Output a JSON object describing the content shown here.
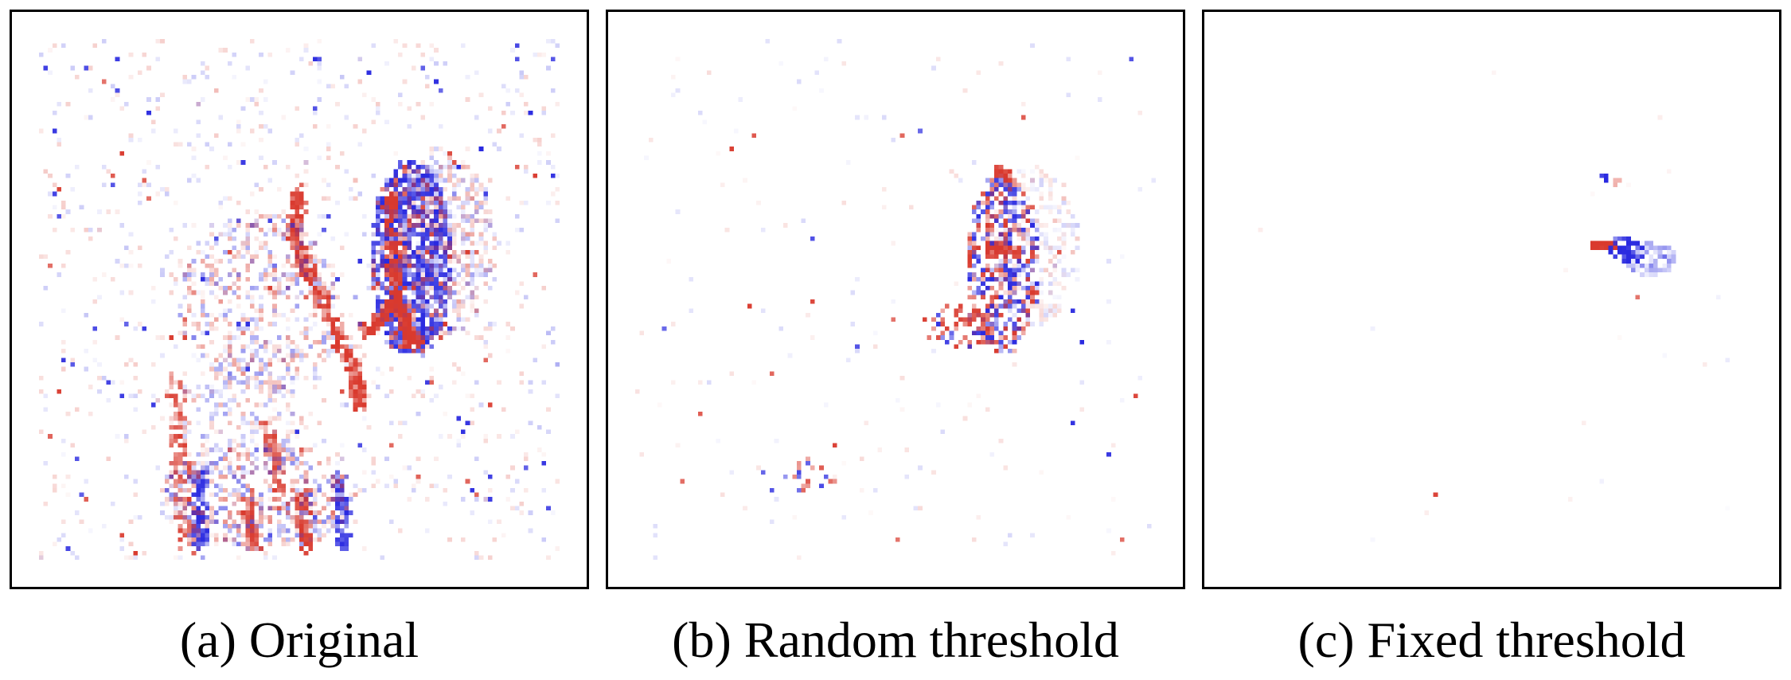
{
  "figure": {
    "panels": [
      {
        "id": "a",
        "caption": "(a) Original"
      },
      {
        "id": "b",
        "caption": "(b) Random threshold"
      },
      {
        "id": "c",
        "caption": "(c) Fixed threshold"
      }
    ],
    "colors": {
      "positive": "#d93a2e",
      "negative": "#2a2ae0",
      "background": "#ffffff",
      "border": "#000000"
    }
  }
}
